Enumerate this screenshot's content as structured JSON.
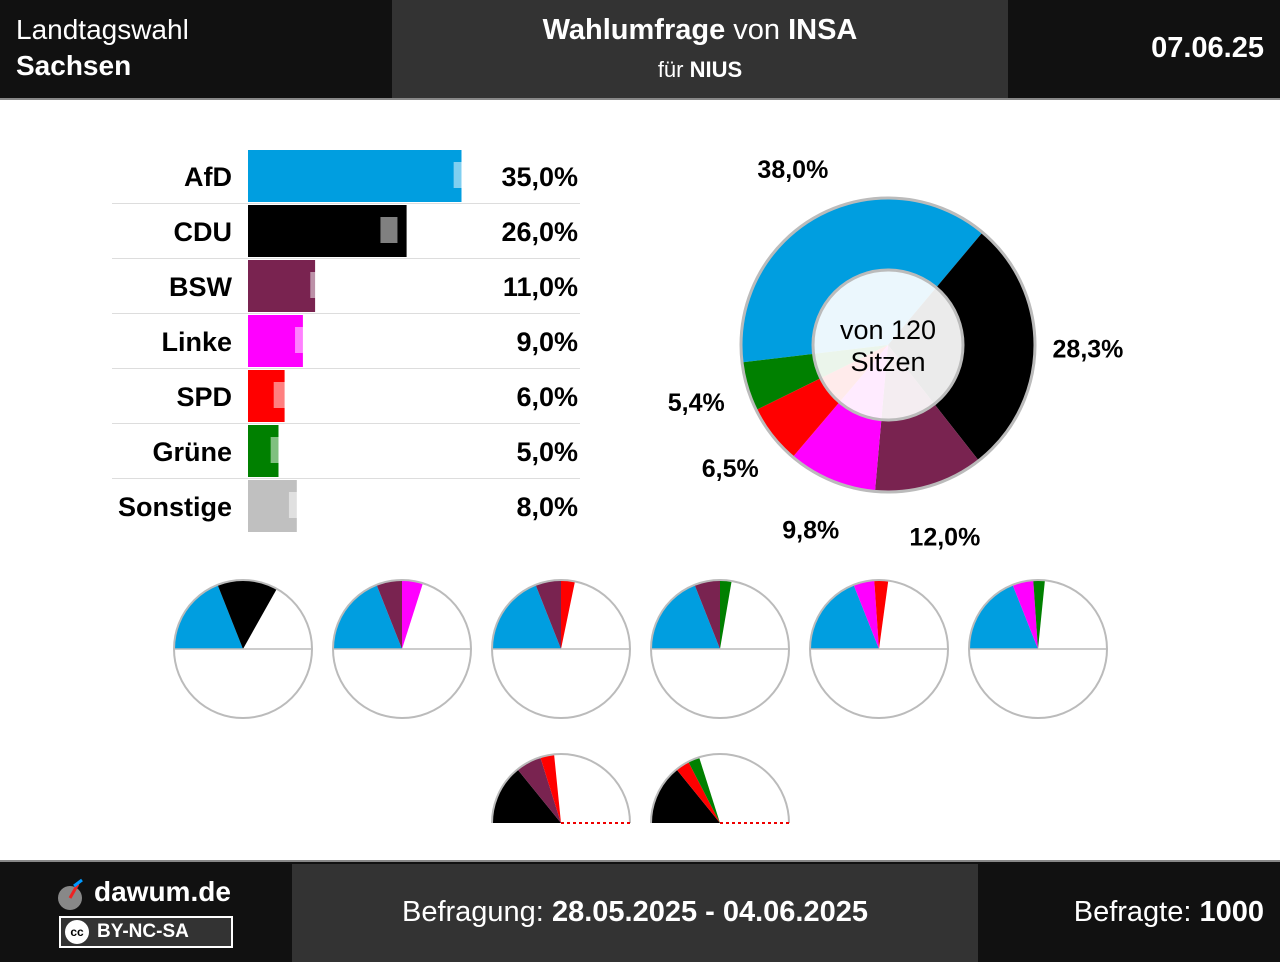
{
  "header": {
    "election_line1": "Landtagswahl",
    "election_line2": "Sachsen",
    "title_bold1": "Wahlumfrage",
    "title_mid": " von ",
    "title_bold2": "INSA",
    "client_prefix": "für ",
    "client": "NIUS",
    "date": "07.06.25"
  },
  "colors": {
    "AfD": "#009ee0",
    "CDU": "#000000",
    "BSW": "#792350",
    "Linke": "#ff00ff",
    "SPD": "#ff0000",
    "Grüne": "#008000",
    "Sonstige": "#c0c0c0"
  },
  "chart_data": [
    {
      "type": "bar",
      "categories": [
        "AfD",
        "CDU",
        "BSW",
        "Linke",
        "SPD",
        "Grüne",
        "Sonstige"
      ],
      "values": [
        35.0,
        26.0,
        11.0,
        9.0,
        6.0,
        5.0,
        8.0
      ],
      "value_labels": [
        "35,0%",
        "26,0%",
        "11,0%",
        "9,0%",
        "6,0%",
        "5,0%",
        "8,0%"
      ],
      "previous_values": [
        36.5,
        24.5,
        13.0,
        10.5,
        7.0,
        6.5,
        9.5
      ]
    },
    {
      "type": "pie",
      "categories": [
        "AfD",
        "CDU",
        "BSW",
        "Linke",
        "SPD",
        "Grüne"
      ],
      "values": [
        38.0,
        28.3,
        12.0,
        9.8,
        6.5,
        5.4
      ],
      "value_labels": [
        "38,0%",
        "28,3%",
        "12,0%",
        "9,8%",
        "6,5%",
        "5,4%"
      ],
      "center_line1": "von 120",
      "center_line2": "Sitzen"
    },
    {
      "type": "pie",
      "description_of_marks": "coalition half-pies",
      "coalitions": [
        [
          "AfD",
          "CDU"
        ],
        [
          "AfD",
          "BSW",
          "Linke"
        ],
        [
          "AfD",
          "BSW",
          "SPD"
        ],
        [
          "AfD",
          "BSW",
          "Grüne"
        ],
        [
          "AfD",
          "Linke",
          "SPD"
        ],
        [
          "AfD",
          "Linke",
          "Grüne"
        ],
        [
          "CDU",
          "BSW",
          "SPD"
        ],
        [
          "CDU",
          "SPD",
          "Grüne"
        ]
      ]
    }
  ],
  "footer": {
    "logo": "dawum.de",
    "cc": "cc",
    "license": "BY-NC-SA",
    "survey_label": "Befragung: ",
    "survey_period": "28.05.2025 - 04.06.2025",
    "respondents_label": "Befragte: ",
    "respondents": "1000"
  }
}
